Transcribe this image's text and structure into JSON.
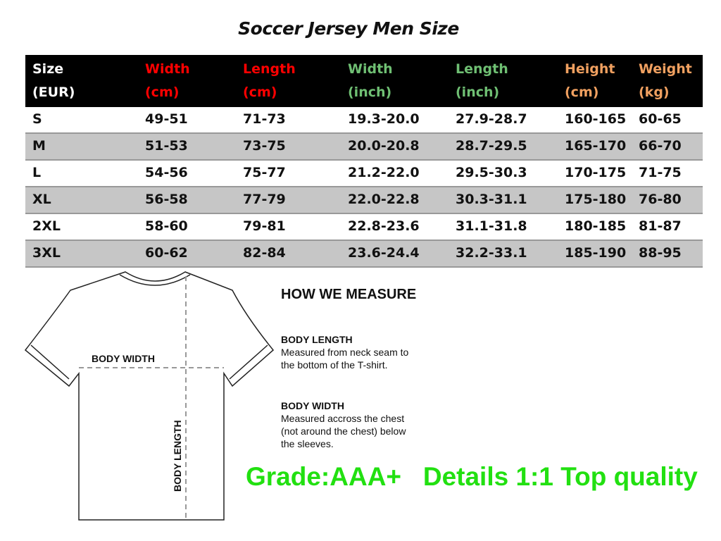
{
  "title": "Soccer Jersey Men Size",
  "header": [
    {
      "l1": "Size",
      "l2": "(EUR)",
      "color": "#ffffff"
    },
    {
      "l1": "Width",
      "l2": "(cm)",
      "color": "#ff0000"
    },
    {
      "l1": "Length",
      "l2": "(cm)",
      "color": "#ff0000"
    },
    {
      "l1": "Width",
      "l2": "(inch)",
      "color": "#6fbf73"
    },
    {
      "l1": "Length",
      "l2": "(inch)",
      "color": "#6fbf73"
    },
    {
      "l1": "Height",
      "l2": "(cm)",
      "color": "#f0a060"
    },
    {
      "l1": "Weight",
      "l2": "(kg)",
      "color": "#f0a060"
    }
  ],
  "rows": [
    [
      "S",
      "49-51",
      "71-73",
      "19.3-20.0",
      "27.9-28.7",
      "160-165",
      "60-65"
    ],
    [
      "M",
      "51-53",
      "73-75",
      "20.0-20.8",
      "28.7-29.5",
      "165-170",
      "66-70"
    ],
    [
      "L",
      "54-56",
      "75-77",
      "21.2-22.0",
      "29.5-30.3",
      "170-175",
      "71-75"
    ],
    [
      "XL",
      "56-58",
      "77-79",
      "22.0-22.8",
      "30.3-31.1",
      "175-180",
      "76-80"
    ],
    [
      "2XL",
      "58-60",
      "79-81",
      "22.8-23.6",
      "31.1-31.8",
      "180-185",
      "81-87"
    ],
    [
      "3XL",
      "60-62",
      "82-84",
      "23.6-24.4",
      "32.2-33.1",
      "185-190",
      "88-95"
    ]
  ],
  "diagram": {
    "body_width": "BODY WIDTH",
    "body_length": "BODY LENGTH"
  },
  "how": {
    "title": "HOW WE MEASURE",
    "length_title": "BODY LENGTH",
    "length_1": "Measured from neck seam to",
    "length_2": "the bottom of the T-shirt.",
    "width_title": "BODY WIDTH",
    "width_1": "Measured accross the chest",
    "width_2": "(not around the chest) below",
    "width_3": "the sleeves."
  },
  "grade": "Grade:AAA+   Details 1:1 Top quality",
  "grade_color": "#22e011"
}
